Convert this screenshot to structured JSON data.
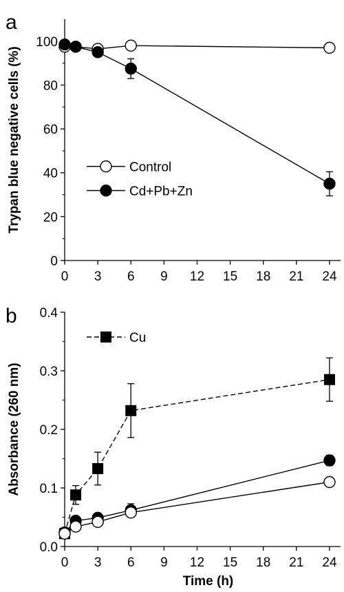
{
  "chart_data": [
    {
      "panel": "a",
      "type": "line",
      "xlabel": "",
      "ylabel": "Trypan blue negative cells (%)",
      "xlim": [
        0,
        25
      ],
      "ylim": [
        0,
        110
      ],
      "x_ticks": [
        "0",
        "3",
        "6",
        "9",
        "12",
        "15",
        "18",
        "21",
        "24"
      ],
      "y_ticks": [
        "0",
        "20",
        "40",
        "60",
        "80",
        "100"
      ],
      "legend_position": "lower-left",
      "series": [
        {
          "name": "Control",
          "marker": "open-circle",
          "line": "solid",
          "x": [
            0,
            1,
            3,
            6,
            24
          ],
          "y": [
            97.5,
            97.5,
            96.5,
            98,
            97
          ],
          "err": [
            1.5,
            1.5,
            1.5,
            1,
            1
          ]
        },
        {
          "name": "Cd+Pb+Zn",
          "marker": "filled-circle",
          "line": "solid",
          "x": [
            0,
            1,
            3,
            6,
            24
          ],
          "y": [
            98.5,
            97.5,
            95,
            87.5,
            35
          ],
          "err": [
            1.5,
            1.5,
            2,
            4.5,
            5.5
          ]
        }
      ]
    },
    {
      "panel": "b",
      "type": "line",
      "xlabel": "Time (h)",
      "ylabel": "Absorbance (260 nm)",
      "xlim": [
        0,
        25
      ],
      "ylim": [
        0,
        0.4
      ],
      "x_ticks": [
        "0",
        "3",
        "6",
        "9",
        "12",
        "15",
        "18",
        "21",
        "24"
      ],
      "y_ticks": [
        "0.0",
        "0.1",
        "0.2",
        "0.3",
        "0.4"
      ],
      "legend_position": "top-left",
      "series": [
        {
          "name": "Cu",
          "marker": "filled-square",
          "line": "dashed",
          "x": [
            0,
            1,
            3,
            6,
            24
          ],
          "y": [
            0.022,
            0.088,
            0.133,
            0.232,
            0.285
          ],
          "err": [
            0.004,
            0.016,
            0.028,
            0.046,
            0.037
          ]
        },
        {
          "name": "",
          "marker": "filled-circle",
          "line": "solid",
          "x": [
            0,
            1,
            3,
            6,
            24
          ],
          "y": [
            0.024,
            0.044,
            0.049,
            0.062,
            0.147
          ],
          "err": [
            0.004,
            0.005,
            0.005,
            0.011,
            0.009
          ]
        },
        {
          "name": "",
          "marker": "open-circle",
          "line": "solid",
          "x": [
            0,
            1,
            3,
            6,
            24
          ],
          "y": [
            0.022,
            0.034,
            0.042,
            0.058,
            0.11
          ],
          "err": [
            0.003,
            0.004,
            0.004,
            0.006,
            0.004
          ]
        }
      ]
    }
  ]
}
